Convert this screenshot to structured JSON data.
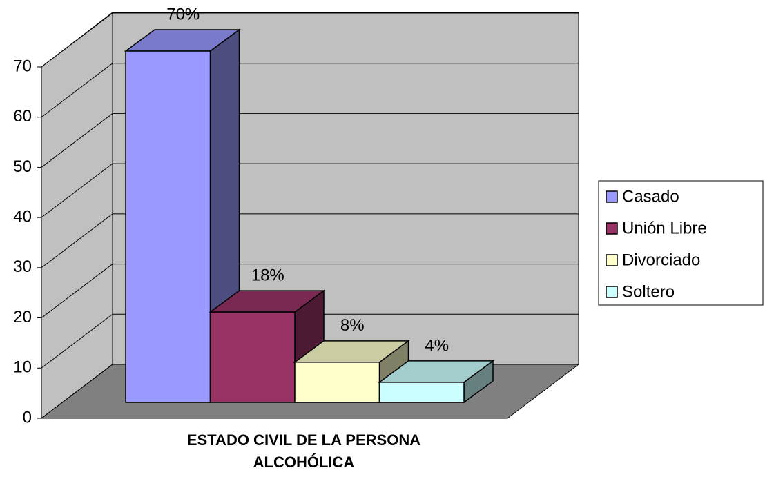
{
  "chart_data": {
    "type": "bar3d",
    "xlabel": "ESTADO CIVIL DE LA PERSONA ALCOHÓLICA",
    "series": [
      {
        "name": "Casado",
        "color": "#9999ff",
        "values": [
          70
        ],
        "value_labels": [
          "70%"
        ]
      },
      {
        "name": "Unión Libre",
        "color": "#993366",
        "values": [
          18
        ],
        "value_labels": [
          "18%"
        ]
      },
      {
        "name": "Divorciado",
        "color": "#ffffcc",
        "values": [
          8
        ],
        "value_labels": [
          "8%"
        ]
      },
      {
        "name": "Soltero",
        "color": "#ccffff",
        "values": [
          4
        ],
        "value_labels": [
          "4%"
        ]
      }
    ],
    "ylim": [
      0,
      70
    ],
    "yticks": [
      0,
      10,
      20,
      30,
      40,
      50,
      60,
      70
    ],
    "grid": true,
    "legend": "right"
  }
}
